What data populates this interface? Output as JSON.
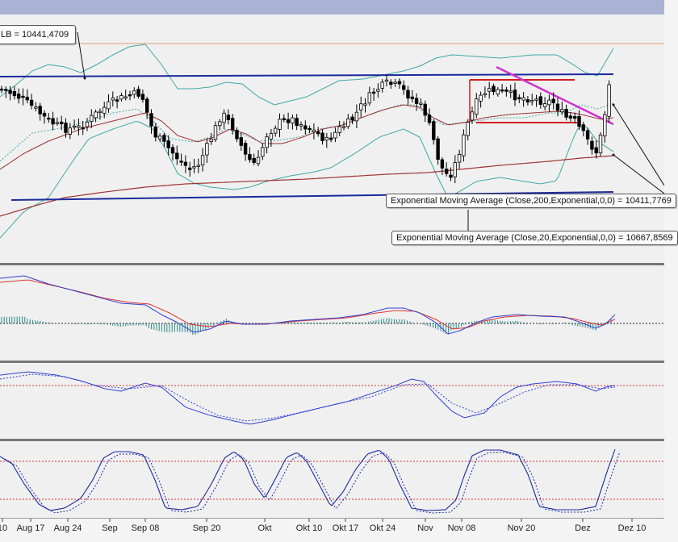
{
  "window": {
    "titlebar_color": "#aab3d4"
  },
  "callouts": {
    "bollinger_lower": "LB = 10441,4709",
    "ema200": "Exponential Moving Average (Close,200,Exponential,0,0) = 10411,7769",
    "ema20": "Exponential Moving Average (Close,20,Exponential,0,0) = 10667,8569"
  },
  "colors": {
    "background": "#f0f0f0",
    "panel_divider": "#777777",
    "candle_up": "#ffffff",
    "candle_down": "#000000",
    "bollinger": "#40a8a8",
    "ema20": "#a03030",
    "ema200": "#a03030",
    "channel": "#1b2a9c",
    "resistance": "#d02020",
    "downtrend": "#d030d0",
    "reference": "#e0a070",
    "macd": "#3040d0",
    "signal": "#e03030",
    "histogram": "#2a8a8a",
    "level_dotted": "#e03030"
  },
  "chart_data": [
    {
      "panel": "price",
      "type": "candlestick",
      "x_labels": [
        "10",
        "Aug 17",
        "Aug 24",
        "Sep",
        "Sep 08",
        "Sep 20",
        "Okt",
        "Okt 10",
        "Okt 17",
        "Okt 24",
        "Nov",
        "Nov 08",
        "Nov 20",
        "Dez",
        "Dez 10"
      ],
      "overlays": [
        "Bollinger Bands",
        "Exponential Moving Average (Close,200)",
        "Exponential Moving Average (Close,20)"
      ],
      "annotations": [
        "LB = 10441,4709",
        "Exponential Moving Average (Close,200,Exponential,0,0) = 10411,7769",
        "Exponential Moving Average (Close,20,Exponential,0,0) = 10667,8569"
      ],
      "grid": false
    },
    {
      "panel": "macd",
      "type": "line",
      "series": [
        {
          "values": []
        },
        {
          "values": []
        }
      ]
    },
    {
      "panel": "oscillator",
      "type": "line",
      "series": [
        {
          "values": []
        },
        {
          "values": []
        }
      ]
    },
    {
      "panel": "stochastic",
      "type": "line",
      "series": [
        {
          "values": []
        },
        {
          "values": []
        }
      ]
    }
  ]
}
